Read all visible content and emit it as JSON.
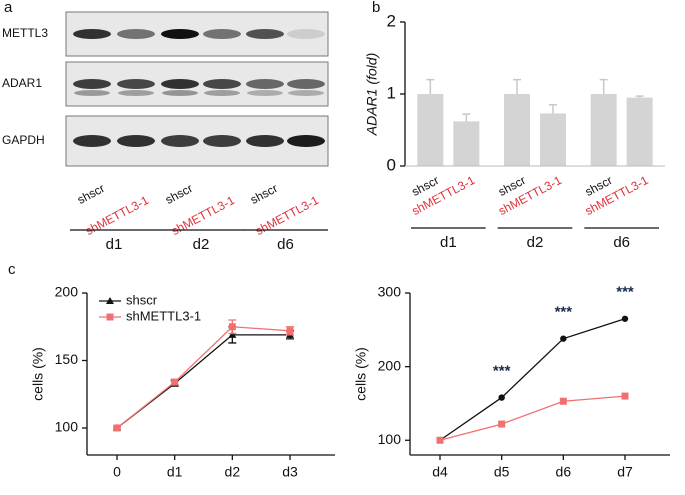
{
  "blot": {
    "panel": "a",
    "proteins": [
      "METTL3",
      "ADAR1",
      "GAPDH"
    ],
    "lanes": [
      "shscr",
      "shMETTL3-1",
      "shscr",
      "shMETTL3-1",
      "shscr",
      "shMETTL3-1"
    ],
    "lane_colors": [
      "#111111",
      "#e0303a"
    ],
    "groups": [
      "d1",
      "d2",
      "d6"
    ]
  },
  "chart_data": [
    {
      "type": "bar",
      "panel": "b",
      "ylabel": "ADAR1 (fold)",
      "categories": [
        "shscr",
        "shMETTL3-1",
        "shscr",
        "shMETTL3-1",
        "shscr",
        "shMETTL3-1"
      ],
      "category_colors": [
        "#111111",
        "#e0303a"
      ],
      "groups": [
        "d1",
        "d2",
        "d6"
      ],
      "values": [
        1.0,
        0.62,
        1.0,
        0.73,
        1.0,
        0.95
      ],
      "errors": [
        0.2,
        0.1,
        0.2,
        0.12,
        0.2,
        0.02
      ],
      "color": "#d4d4d4",
      "ylim": [
        0,
        2
      ],
      "yticks": [
        0,
        1,
        2
      ]
    },
    {
      "type": "line",
      "panel": "c",
      "ylabel": "cells (%)",
      "categories": [
        "0",
        "d1",
        "d2",
        "d3"
      ],
      "series": [
        {
          "name": "shscr",
          "color": "#111111",
          "marker": "triangle",
          "values": [
            100,
            133,
            169,
            169
          ],
          "errors": [
            1,
            2,
            6,
            3
          ]
        },
        {
          "name": "shMETTL3-1",
          "color": "#f07070",
          "marker": "square",
          "values": [
            100,
            134,
            175,
            172
          ],
          "errors": [
            1,
            2,
            5,
            3
          ]
        }
      ],
      "ylim": [
        80,
        200
      ],
      "yticks": [
        100,
        150,
        200
      ],
      "legend": "upper left"
    },
    {
      "type": "line",
      "ylabel": "cells (%)",
      "categories": [
        "d4",
        "d5",
        "d6",
        "d7"
      ],
      "series": [
        {
          "name": "shscr",
          "color": "#111111",
          "marker": "circle",
          "values": [
            100,
            158,
            238,
            265
          ]
        },
        {
          "name": "shMETTL3-1",
          "color": "#f07070",
          "marker": "square",
          "values": [
            100,
            122,
            153,
            160
          ]
        }
      ],
      "value_annotations": [
        null,
        "***",
        "***",
        "***"
      ],
      "ylim": [
        80,
        300
      ],
      "yticks": [
        100,
        200,
        300
      ],
      "show_legend": false
    }
  ]
}
